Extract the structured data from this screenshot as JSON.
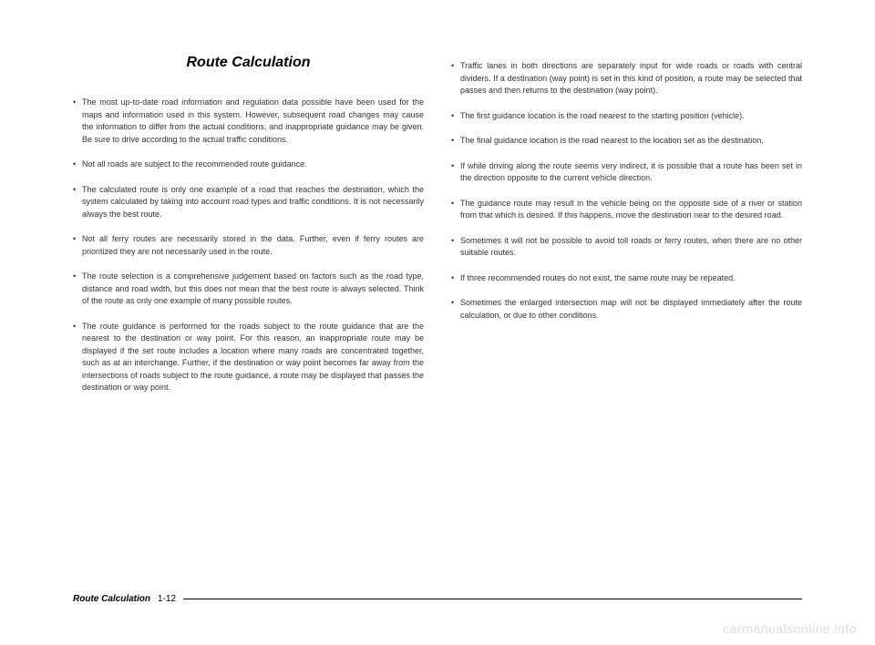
{
  "title": "Route Calculation",
  "leftColumn": {
    "bullets": [
      "The most up-to-date road information and regulation data possible have been used for the maps and information used in this system. However, subsequent road changes may cause the information to differ from the actual conditions, and inappropriate guidance may be given. Be sure to drive according to the actual traffic conditions.",
      "Not all roads are subject to the recommended route guidance.",
      "The calculated route is only one example of a road that reaches the destination, which the system calculated by taking into account road types and traffic conditions. It is not necessarily always the best route.",
      "Not all ferry routes are necessarily stored in the data. Further, even if ferry routes are prioritized they are not necessarily used in the route.",
      "The route selection is a comprehensive judgement based on factors such as the road type, distance and road width, but this does not mean that the best route is always selected. Think of the route as only one example of many possible routes.",
      "The route guidance is performed for the roads subject to the route guidance that are the nearest to the destination or way point. For this reason, an inappropriate route may be displayed if the set route includes a location where many roads are concentrated together, such as at an interchange. Further, if the destination or way point becomes far away from the intersections of roads subject to the route guidance, a route may be displayed that passes the destination or way point."
    ]
  },
  "rightColumn": {
    "bullets": [
      "Traffic lanes in both directions are separately input for wide roads or roads with central dividers. If a destination (way point) is set in this kind of position, a route may be selected that passes and then returns to the destination (way point).",
      "The first guidance location is the road nearest to the starting position (vehicle).",
      "The final guidance location is the road nearest to the location set as the destination.",
      "If while driving along the route seems very indirect, it is possible that a route has been set in the direction opposite to the current vehicle direction.",
      "The guidance route may result in the vehicle being on the opposite side of a river or station from that which is desired. If this happens, move the destination near to the desired road.",
      "Sometimes it will not be possible to avoid toll roads or ferry routes, when there are no other suitable routes.",
      "If three recommended routes do not exist, the same route may be repeated.",
      "Sometimes the enlarged intersection map will not be displayed immediately after the route calculation, or due to other conditions."
    ]
  },
  "footer": {
    "title": "Route Calculation",
    "page": "1-12"
  },
  "watermark": "carmanualsonline.info"
}
